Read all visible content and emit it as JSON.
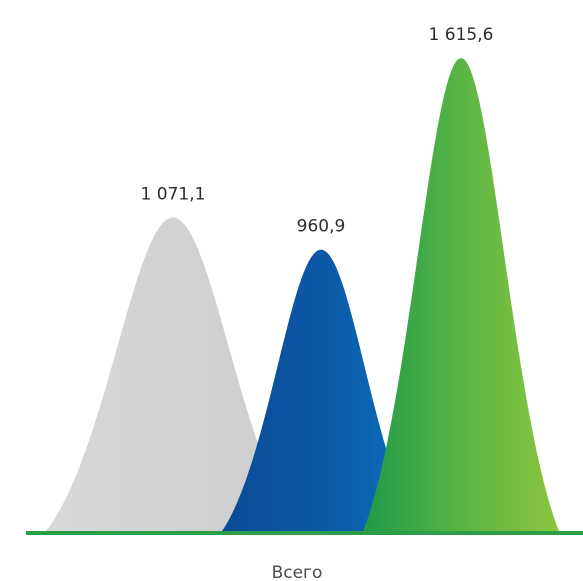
{
  "chart_data": {
    "type": "area",
    "categories": [
      "Всего"
    ],
    "series": [
      {
        "values": [
          1071.1
        ],
        "label": "1 071,1",
        "color": "#d0d2d3"
      },
      {
        "values": [
          960.9
        ],
        "label": "960,9",
        "color": "#0a67b3"
      },
      {
        "values": [
          1615.6
        ],
        "label": "1 615,6",
        "color": "#58b646"
      }
    ],
    "title": "",
    "xlabel": "",
    "ylabel": "",
    "ylim": [
      0,
      1615.6
    ],
    "grid": false,
    "legend": "none",
    "baseline_color": "#2d9d48"
  }
}
